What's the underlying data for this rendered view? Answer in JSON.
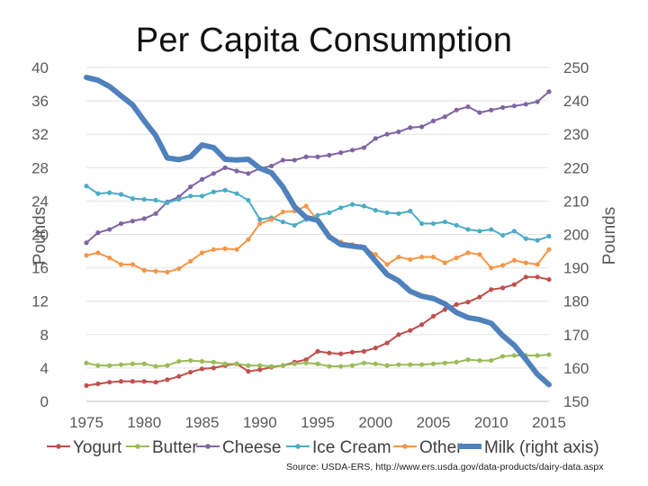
{
  "chart_data": {
    "type": "line",
    "title": "Per Capita Consumption",
    "xlabel": "",
    "ylabel_left": "Pounds",
    "ylabel_right": "Pounds",
    "x_ticks": [
      1975,
      1980,
      1985,
      1990,
      1995,
      2000,
      2005,
      2010,
      2015
    ],
    "ylim_left": [
      0,
      40
    ],
    "y_ticks_left": [
      0,
      4,
      8,
      12,
      16,
      20,
      24,
      28,
      32,
      36,
      40
    ],
    "ylim_right": [
      150,
      250
    ],
    "y_ticks_right": [
      150,
      160,
      170,
      180,
      190,
      200,
      210,
      220,
      230,
      240,
      250
    ],
    "grid": true,
    "legend_position": "bottom",
    "x": [
      1975,
      1976,
      1977,
      1978,
      1979,
      1980,
      1981,
      1982,
      1983,
      1984,
      1985,
      1986,
      1987,
      1988,
      1989,
      1990,
      1991,
      1992,
      1993,
      1994,
      1995,
      1996,
      1997,
      1998,
      1999,
      2000,
      2001,
      2002,
      2003,
      2004,
      2005,
      2006,
      2007,
      2008,
      2009,
      2010,
      2011,
      2012,
      2013,
      2014,
      2015
    ],
    "series": [
      {
        "name": "Yogurt",
        "axis": "left",
        "color": "#c0504d",
        "marker": true,
        "values": [
          1.9,
          2.1,
          2.3,
          2.4,
          2.4,
          2.4,
          2.3,
          2.6,
          3.0,
          3.5,
          3.9,
          4.0,
          4.3,
          4.5,
          3.6,
          3.8,
          4.1,
          4.3,
          4.7,
          5.0,
          6.0,
          5.8,
          5.7,
          5.9,
          6.0,
          6.4,
          7.0,
          8.0,
          8.5,
          9.2,
          10.2,
          11.0,
          11.6,
          11.9,
          12.5,
          13.4,
          13.6,
          14.0,
          14.9,
          14.9,
          14.6
        ]
      },
      {
        "name": "Butter",
        "axis": "left",
        "color": "#9bbb59",
        "marker": true,
        "values": [
          4.6,
          4.3,
          4.3,
          4.4,
          4.5,
          4.5,
          4.2,
          4.3,
          4.8,
          4.9,
          4.8,
          4.7,
          4.5,
          4.5,
          4.3,
          4.3,
          4.2,
          4.3,
          4.5,
          4.6,
          4.5,
          4.2,
          4.2,
          4.3,
          4.6,
          4.5,
          4.3,
          4.4,
          4.4,
          4.4,
          4.5,
          4.6,
          4.7,
          5.0,
          4.9,
          4.9,
          5.4,
          5.5,
          5.5,
          5.5,
          5.6
        ]
      },
      {
        "name": "Cheese",
        "axis": "left",
        "color": "#8064a2",
        "marker": true,
        "values": [
          19.0,
          20.2,
          20.6,
          21.3,
          21.6,
          21.9,
          22.5,
          23.9,
          24.5,
          25.7,
          26.6,
          27.3,
          28.0,
          27.6,
          27.3,
          27.9,
          28.2,
          28.9,
          28.9,
          29.3,
          29.3,
          29.5,
          29.8,
          30.1,
          30.4,
          31.5,
          32.0,
          32.3,
          32.8,
          32.9,
          33.6,
          34.1,
          34.9,
          35.3,
          34.6,
          34.9,
          35.2,
          35.4,
          35.6,
          35.9,
          37.1
        ]
      },
      {
        "name": "Ice Cream",
        "axis": "left",
        "color": "#4bacc6",
        "marker": true,
        "values": [
          25.8,
          24.9,
          25.0,
          24.8,
          24.3,
          24.2,
          24.1,
          23.8,
          24.2,
          24.6,
          24.6,
          25.1,
          25.3,
          24.9,
          24.1,
          21.8,
          22.0,
          21.5,
          21.1,
          21.8,
          22.3,
          22.6,
          23.2,
          23.6,
          23.4,
          22.9,
          22.6,
          22.5,
          22.8,
          21.3,
          21.3,
          21.5,
          21.1,
          20.6,
          20.4,
          20.6,
          19.9,
          20.4,
          19.5,
          19.3,
          19.8
        ]
      },
      {
        "name": "Other",
        "axis": "left",
        "color": "#f79646",
        "marker": true,
        "values": [
          17.5,
          17.8,
          17.2,
          16.4,
          16.4,
          15.7,
          15.6,
          15.5,
          15.9,
          16.8,
          17.8,
          18.2,
          18.3,
          18.2,
          19.4,
          21.3,
          21.8,
          22.7,
          22.8,
          23.4,
          21.7,
          19.6,
          19.1,
          18.8,
          18.4,
          17.6,
          16.4,
          17.3,
          17.0,
          17.3,
          17.3,
          16.6,
          17.2,
          17.8,
          17.6,
          16.0,
          16.3,
          16.9,
          16.6,
          16.4,
          18.2
        ]
      },
      {
        "name": "Milk (right axis)",
        "axis": "right",
        "color": "#4f81bd",
        "marker": false,
        "values": [
          247.0,
          246.2,
          244.3,
          241.5,
          238.8,
          234.0,
          229.6,
          222.9,
          222.4,
          223.3,
          226.8,
          226.0,
          222.5,
          222.3,
          222.5,
          219.8,
          218.5,
          214.2,
          208.3,
          205.1,
          204.2,
          199.3,
          197.0,
          196.5,
          196.1,
          192.0,
          188.0,
          186.1,
          183.0,
          181.5,
          180.8,
          179.2,
          176.6,
          175.1,
          174.5,
          173.4,
          169.7,
          166.8,
          162.6,
          158.1,
          155.0
        ]
      }
    ],
    "source": "Source: USDA-ERS, http://www.ers.usda.gov/data-products/dairy-data.aspx"
  }
}
